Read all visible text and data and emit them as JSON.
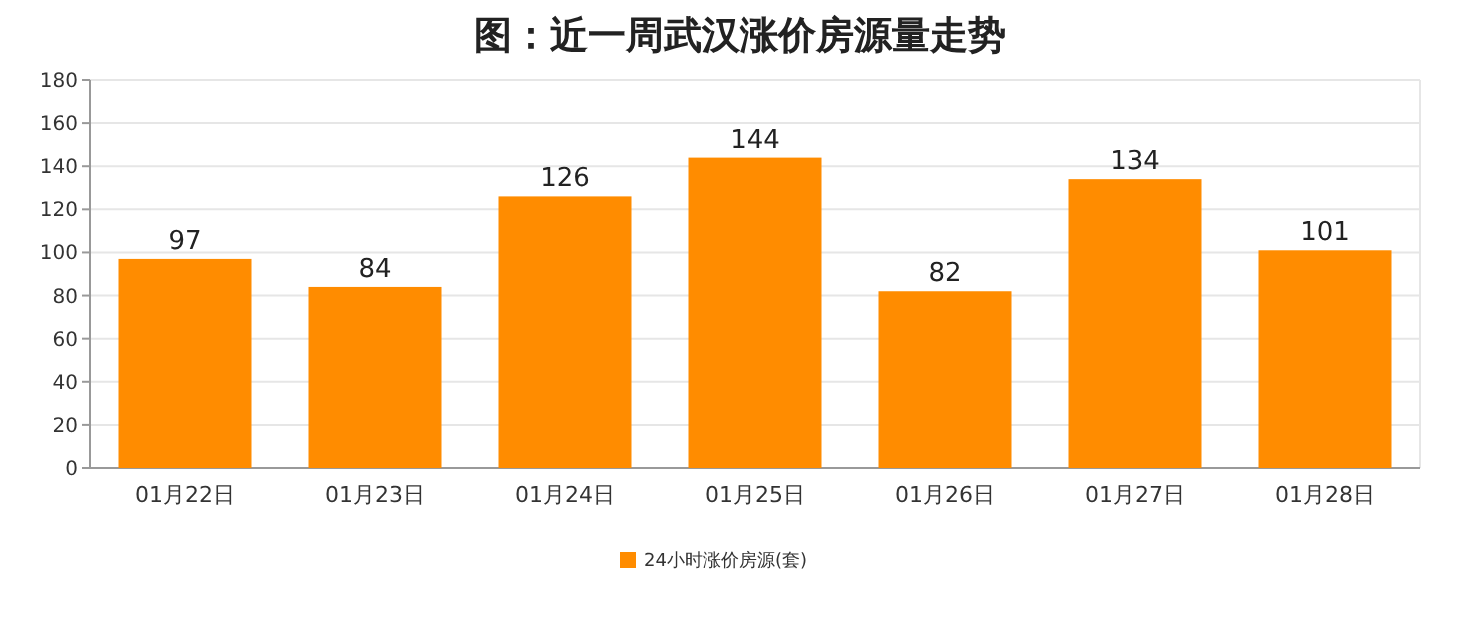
{
  "chart_data": {
    "type": "bar",
    "title": "图：近一周武汉涨价房源量走势",
    "categories": [
      "01月22日",
      "01月23日",
      "01月24日",
      "01月25日",
      "01月26日",
      "01月27日",
      "01月28日"
    ],
    "series": [
      {
        "name": "24小时涨价房源(套)",
        "color": "#ff8c00",
        "values": [
          97,
          84,
          126,
          144,
          82,
          134,
          101
        ]
      }
    ],
    "ylim": [
      0,
      180
    ],
    "yticks": [
      0,
      20,
      40,
      60,
      80,
      100,
      120,
      140,
      160,
      180
    ],
    "grid": "y",
    "legend": "bottom",
    "data_labels": true
  }
}
